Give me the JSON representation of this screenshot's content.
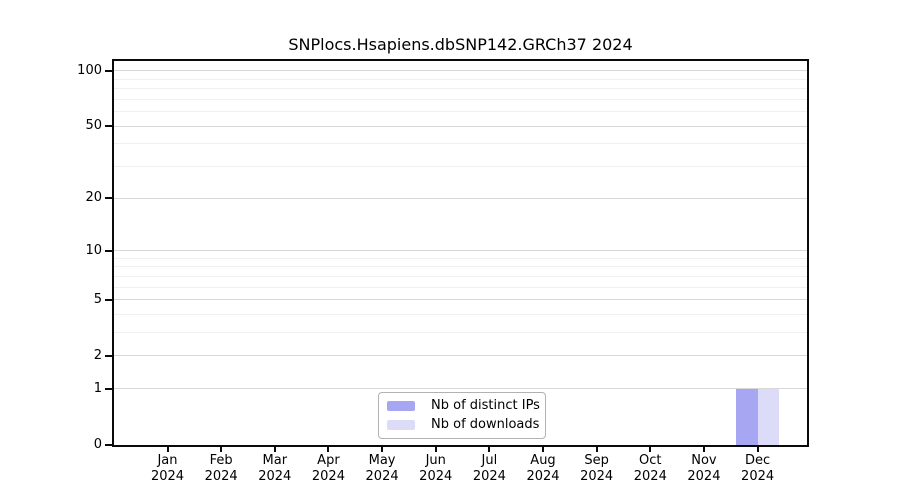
{
  "chart_data": {
    "type": "bar",
    "title": "SNPlocs.Hsapiens.dbSNP142.GRCh37 2024",
    "months": [
      "Jan",
      "Feb",
      "Mar",
      "Apr",
      "May",
      "Jun",
      "Jul",
      "Aug",
      "Sep",
      "Oct",
      "Nov",
      "Dec"
    ],
    "year_label": "2024",
    "series": [
      {
        "name": "Nb of distinct IPs",
        "color": "#a6a6f2",
        "values": [
          0,
          0,
          0,
          0,
          0,
          0,
          0,
          0,
          0,
          0,
          0,
          1
        ]
      },
      {
        "name": "Nb of downloads",
        "color": "#dcdcf9",
        "values": [
          0,
          0,
          0,
          0,
          0,
          0,
          0,
          0,
          0,
          0,
          0,
          1
        ]
      }
    ],
    "yscale": "log1p",
    "ylim": [
      0,
      113
    ],
    "yticks_labeled": [
      0,
      1,
      2,
      5,
      10,
      20,
      50,
      100
    ],
    "yticks_minor": [
      3,
      4,
      6,
      7,
      8,
      9,
      30,
      40,
      60,
      70,
      80,
      90
    ],
    "grid": "horizontal",
    "legend_position": "lower center"
  },
  "colors": {
    "bar_distinct_ips": "#a6a6f2",
    "bar_downloads": "#dcdcf9",
    "grid_major": "#d7d7d7",
    "grid_minor": "#f0f0f0",
    "spine": "#0a0a0a",
    "legend_border": "#b2b2b2",
    "background": "#ffffff"
  }
}
